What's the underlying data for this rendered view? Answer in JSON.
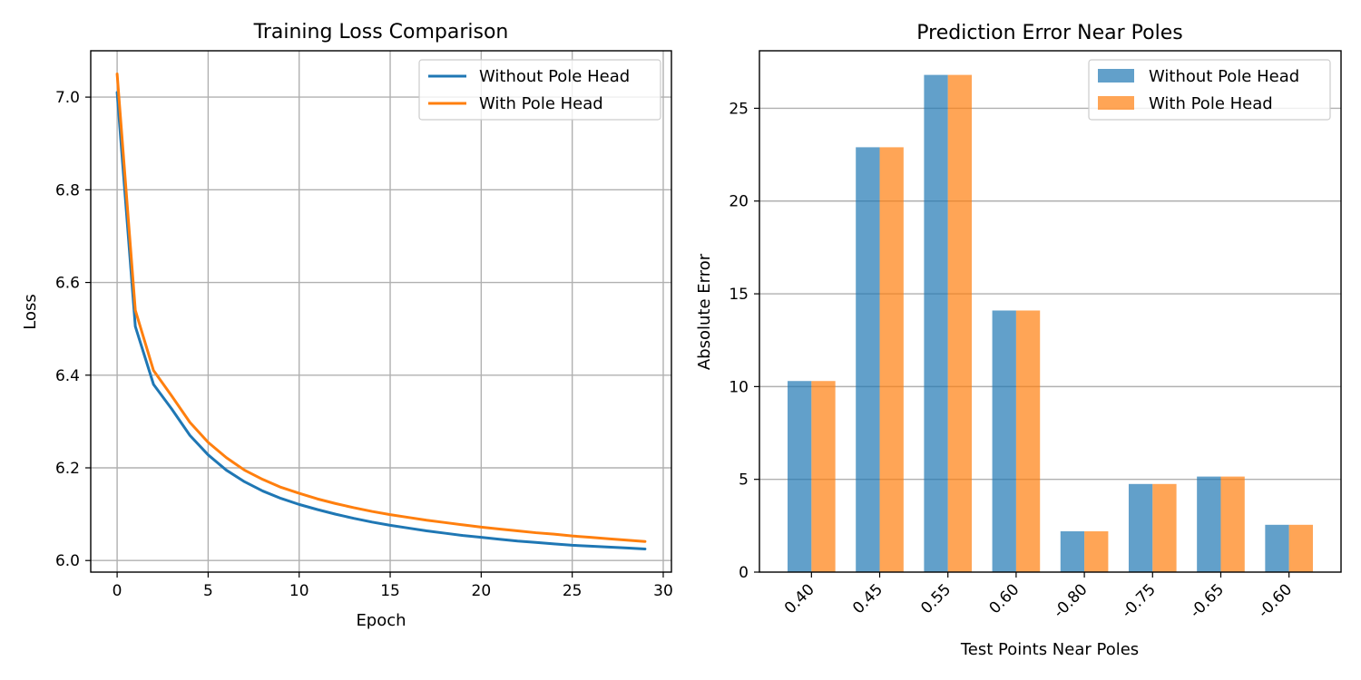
{
  "chart_data": [
    {
      "type": "line",
      "title": "Training Loss Comparison",
      "xlabel": "Epoch",
      "ylabel": "Loss",
      "xlim": [
        -1.45,
        30.45
      ],
      "ylim": [
        5.975,
        7.1
      ],
      "x_ticks": [
        0,
        5,
        10,
        15,
        20,
        25,
        30
      ],
      "y_ticks": [
        6.0,
        6.2,
        6.4,
        6.6,
        6.8,
        7.0
      ],
      "y_tick_labels": [
        "6.0",
        "6.2",
        "6.4",
        "6.6",
        "6.8",
        "7.0"
      ],
      "grid": true,
      "legend_position": "top-right",
      "x": [
        0,
        1,
        2,
        3,
        4,
        5,
        6,
        7,
        8,
        9,
        10,
        11,
        12,
        13,
        14,
        15,
        16,
        17,
        18,
        19,
        20,
        21,
        22,
        23,
        24,
        25,
        26,
        27,
        28,
        29
      ],
      "series": [
        {
          "name": "Without Pole Head",
          "color": "#1f77b4",
          "values": [
            7.01,
            6.505,
            6.38,
            6.327,
            6.27,
            6.228,
            6.195,
            6.17,
            6.15,
            6.134,
            6.121,
            6.11,
            6.1,
            6.091,
            6.083,
            6.076,
            6.07,
            6.064,
            6.059,
            6.054,
            6.05,
            6.046,
            6.042,
            6.039,
            6.036,
            6.033,
            6.031,
            6.029,
            6.027,
            6.025
          ]
        },
        {
          "name": "With Pole Head",
          "color": "#ff7f0e",
          "values": [
            7.05,
            6.54,
            6.41,
            6.355,
            6.298,
            6.255,
            6.222,
            6.195,
            6.175,
            6.158,
            6.145,
            6.133,
            6.123,
            6.114,
            6.106,
            6.099,
            6.093,
            6.087,
            6.082,
            6.077,
            6.072,
            6.068,
            6.064,
            6.06,
            6.057,
            6.053,
            6.05,
            6.047,
            6.044,
            6.041
          ]
        }
      ]
    },
    {
      "type": "bar",
      "title": "Prediction Error Near Poles",
      "xlabel": "Test Points Near Poles",
      "ylabel": "Absolute Error",
      "categories": [
        "0.40",
        "0.45",
        "0.55",
        "0.60",
        "-0.80",
        "-0.75",
        "-0.65",
        "-0.60"
      ],
      "ylim": [
        0,
        28.1
      ],
      "y_ticks": [
        0,
        5,
        10,
        15,
        20,
        25
      ],
      "grid": "y",
      "legend_position": "top-right",
      "series": [
        {
          "name": "Without Pole Head",
          "color": "#1f77b4",
          "opacity": 0.7,
          "values": [
            10.3,
            22.9,
            26.8,
            14.1,
            2.2,
            4.75,
            5.15,
            2.55
          ]
        },
        {
          "name": "With Pole Head",
          "color": "#ff7f0e",
          "opacity": 0.7,
          "values": [
            10.3,
            22.9,
            26.8,
            14.1,
            2.2,
            4.75,
            5.15,
            2.55
          ]
        }
      ]
    }
  ]
}
